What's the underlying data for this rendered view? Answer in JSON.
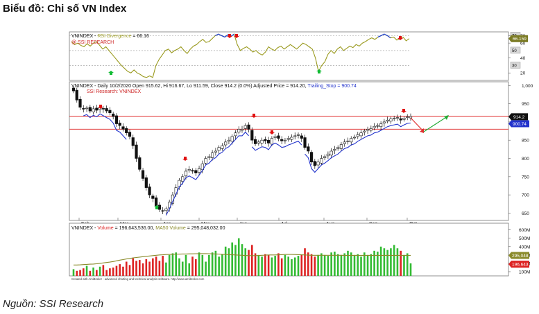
{
  "title": "Biểu đồ: Chi số VN Index",
  "source": "Nguồn: SSI Research",
  "chart_data": [
    {
      "type": "line",
      "panel": "rsi",
      "legend_prefix": "VNINDEX - ",
      "legend_name": "RSI Divergence",
      "legend_value": " = 66.16",
      "sublabel": "@ SSI RESEARCH",
      "ylim": [
        10,
        75
      ],
      "ticks": [
        "20",
        "40",
        "60",
        "70"
      ],
      "boxed_ticks": [
        "30",
        "50",
        "70"
      ],
      "current_label": "66.159",
      "guide_levels": [
        30,
        50,
        70
      ],
      "values": [
        62,
        58,
        60,
        57,
        55,
        59,
        56,
        60,
        62,
        57,
        52,
        55,
        50,
        45,
        40,
        35,
        30,
        26,
        22,
        20,
        24,
        20,
        18,
        15,
        14,
        16,
        14,
        30,
        38,
        44,
        50,
        52,
        47,
        50,
        52,
        55,
        50,
        46,
        52,
        56,
        58,
        62,
        65,
        61,
        62,
        66,
        70,
        72,
        70,
        68,
        71,
        69,
        72,
        58,
        50,
        53,
        55,
        52,
        48,
        50,
        46,
        44,
        48,
        55,
        52,
        50,
        54,
        56,
        52,
        55,
        58,
        55,
        52,
        56,
        60,
        58,
        55,
        52,
        40,
        22,
        30,
        35,
        45,
        50,
        46,
        52,
        55,
        50,
        53,
        56,
        54,
        58,
        56,
        60,
        62,
        65,
        67,
        65,
        68,
        70,
        72,
        70,
        67,
        68,
        64,
        66,
        68,
        63,
        66
      ]
    },
    {
      "type": "candlestick",
      "panel": "price",
      "legend": "VNINDEX - Daily 10/2/2020 Open 915.62, Hi 916.67, Lo 911.59, Close 914.2 (0.0%) Adjusted Price = 914.20, ",
      "legend_stop": "Trailing_Stop = 900.74",
      "sublabel": "SSI Research: VNINDEX",
      "ylim": [
        630,
        1010
      ],
      "yticks": [
        "650",
        "700",
        "750",
        "800",
        "850",
        "900",
        "950",
        "1,000"
      ],
      "months": [
        "Feb",
        "Mar",
        "Apr",
        "May",
        "Jun",
        "Jul",
        "Aug",
        "Sep",
        "Oct"
      ],
      "close_label": "914.2",
      "stop_label": "900.74",
      "resistance": 915,
      "support": 880,
      "closes": [
        985,
        960,
        940,
        935,
        938,
        930,
        936,
        932,
        940,
        935,
        930,
        925,
        915,
        895,
        890,
        880,
        870,
        860,
        835,
        800,
        770,
        745,
        720,
        700,
        690,
        670,
        660,
        655,
        662,
        680,
        700,
        720,
        740,
        750,
        765,
        770,
        765,
        760,
        772,
        785,
        800,
        805,
        815,
        820,
        830,
        835,
        845,
        850,
        860,
        870,
        880,
        880,
        890,
        880,
        850,
        840,
        845,
        850,
        848,
        842,
        855,
        860,
        855,
        848,
        850,
        855,
        858,
        862,
        865,
        855,
        830,
        820,
        790,
        780,
        790,
        800,
        805,
        812,
        820,
        825,
        830,
        838,
        845,
        848,
        855,
        858,
        865,
        870,
        875,
        880,
        882,
        888,
        890,
        895,
        900,
        905,
        908,
        910,
        912,
        905,
        910,
        914,
        915
      ]
    },
    {
      "type": "bar",
      "panel": "volume",
      "legend_prefix": "VNINDEX - ",
      "legend_name": "Volume",
      "legend_value": " = 196,643,536.00, ",
      "legend_ma_name": "MA50 Volume",
      "legend_ma_value": " = 295,048,032.00",
      "ylim": [
        50,
        680
      ],
      "yticks": [
        "100M",
        "200M",
        "300M",
        "400M",
        "500M",
        "600M"
      ],
      "ma_label": "295,048",
      "last_label": "196,643",
      "values": [
        130,
        110,
        120,
        140,
        170,
        110,
        150,
        120,
        160,
        180,
        120,
        140,
        150,
        170,
        190,
        160,
        220,
        180,
        260,
        230,
        240,
        200,
        250,
        220,
        260,
        280,
        230,
        290,
        210,
        300,
        320,
        330,
        260,
        220,
        300,
        200,
        280,
        250,
        330,
        300,
        220,
        300,
        330,
        350,
        280,
        310,
        400,
        380,
        450,
        420,
        500,
        430,
        380,
        360,
        420,
        320,
        300,
        280,
        310,
        300,
        270,
        290,
        320,
        260,
        300,
        280,
        250,
        270,
        290,
        300,
        380,
        330,
        310,
        280,
        300,
        320,
        300,
        290,
        330,
        340,
        310,
        300,
        320,
        350,
        330,
        300,
        310,
        280,
        330,
        300,
        310,
        350,
        340,
        400,
        380,
        360,
        380,
        420,
        380,
        350,
        300,
        320,
        200
      ],
      "ma50": [
        180,
        180,
        182,
        185,
        188,
        190,
        192,
        195,
        200,
        205,
        210,
        215,
        222,
        230,
        238,
        245,
        252,
        258,
        265,
        270,
        275,
        280,
        284,
        288,
        292,
        296,
        300,
        302,
        305,
        306,
        308,
        310,
        310,
        312,
        312,
        314,
        314,
        315,
        316,
        316,
        316,
        315,
        314,
        312,
        310,
        308,
        306,
        304,
        302,
        300,
        298,
        296,
        294,
        292,
        292,
        292,
        294,
        296,
        298,
        300,
        300,
        300,
        302,
        304,
        306,
        306,
        306,
        305,
        304,
        302,
        300,
        298,
        296,
        296,
        296,
        296,
        296,
        296,
        296,
        296,
        296,
        296,
        295,
        295,
        295,
        295,
        295,
        295,
        295,
        295,
        295,
        295,
        295,
        295,
        295,
        295,
        295,
        295,
        295,
        295,
        295,
        295,
        295
      ]
    }
  ],
  "footer_note": "Created with AmiBroker - advanced charting and technical analysis software. http://www.amibroker.com"
}
